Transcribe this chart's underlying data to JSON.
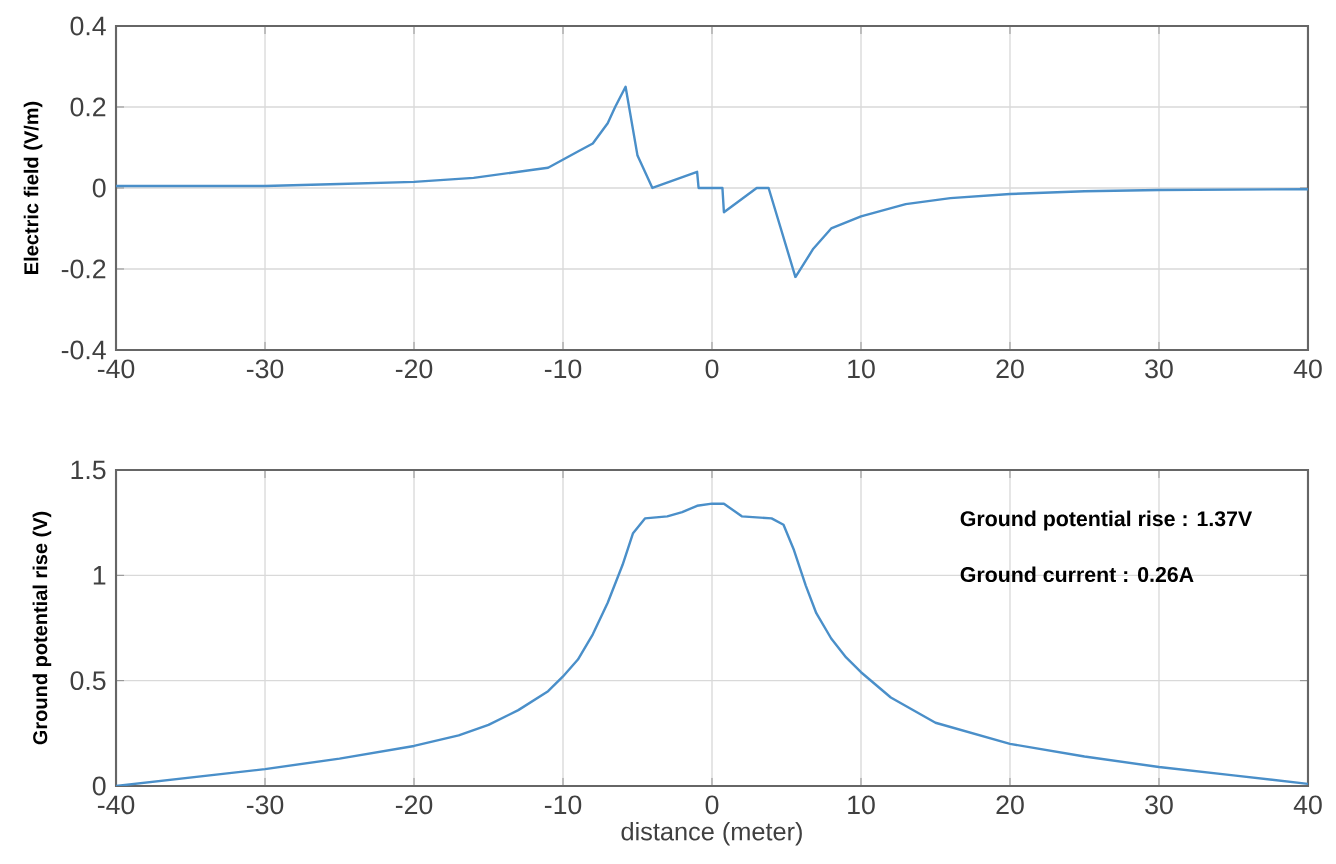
{
  "chart_data": [
    {
      "type": "line",
      "ylabel": "Electric field (V/m)",
      "xlim": [
        -40,
        40
      ],
      "ylim": [
        -0.4,
        0.4
      ],
      "xticks": [
        -40,
        -30,
        -20,
        -10,
        0,
        10,
        20,
        30,
        40
      ],
      "yticks": [
        -0.4,
        -0.2,
        0,
        0.2,
        0.4
      ],
      "grid": true,
      "color": "#4a8fc9",
      "x": [
        -40,
        -30,
        -25,
        -20,
        -16,
        -12,
        -11,
        -9,
        -8,
        -7,
        -6.5,
        -5.8,
        -5,
        -4,
        -1,
        -0.9,
        0.7,
        0.8,
        3,
        3.8,
        5.6,
        6.8,
        8,
        10,
        13,
        16,
        20,
        25,
        30,
        40
      ],
      "values": [
        0.005,
        0.005,
        0.01,
        0.015,
        0.025,
        0.045,
        0.05,
        0.09,
        0.11,
        0.16,
        0.2,
        0.25,
        0.08,
        0.0,
        0.04,
        0.0,
        0.0,
        -0.06,
        0.0,
        0.0,
        -0.22,
        -0.15,
        -0.1,
        -0.07,
        -0.04,
        -0.025,
        -0.015,
        -0.008,
        -0.005,
        -0.003
      ]
    },
    {
      "type": "line",
      "xlabel": "distance (meter)",
      "ylabel": "Ground potential rise (V)",
      "xlim": [
        -40,
        40
      ],
      "ylim": [
        0,
        1.5
      ],
      "xticks": [
        -40,
        -30,
        -20,
        -10,
        0,
        10,
        20,
        30,
        40
      ],
      "yticks": [
        0,
        0.5,
        1,
        1.5
      ],
      "grid": true,
      "color": "#4a8fc9",
      "annotations": [
        "Ground potential rise : 1.37V",
        "Ground current            : 0.26A"
      ],
      "x": [
        -40,
        -35,
        -30,
        -25,
        -20,
        -17,
        -15,
        -13,
        -11,
        -10,
        -9,
        -8,
        -7,
        -6,
        -5.3,
        -4.5,
        -3,
        -2,
        -1,
        0,
        0.8,
        2,
        4,
        4.8,
        5.5,
        6.3,
        7,
        8,
        9,
        10,
        12,
        15,
        20,
        25,
        30,
        35,
        40
      ],
      "values": [
        0,
        0.04,
        0.08,
        0.13,
        0.19,
        0.24,
        0.29,
        0.36,
        0.45,
        0.52,
        0.6,
        0.72,
        0.87,
        1.05,
        1.2,
        1.27,
        1.28,
        1.3,
        1.33,
        1.34,
        1.34,
        1.28,
        1.27,
        1.24,
        1.12,
        0.95,
        0.82,
        0.7,
        0.61,
        0.54,
        0.42,
        0.3,
        0.2,
        0.14,
        0.09,
        0.05,
        0.01
      ]
    }
  ]
}
